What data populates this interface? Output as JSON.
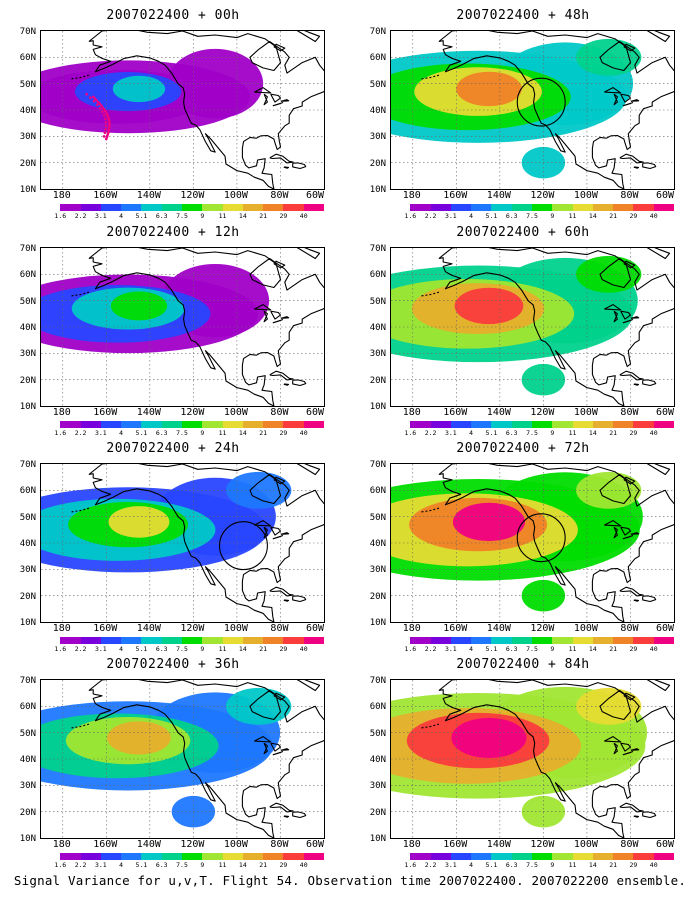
{
  "caption": "Signal Variance for u,v,T. Flight 54. Observation time 2007022400. 2007022200 ensemble.",
  "lat_labels": [
    "70N",
    "60N",
    "50N",
    "40N",
    "30N",
    "20N",
    "10N"
  ],
  "lon_labels": [
    "180",
    "160W",
    "140W",
    "120W",
    "100W",
    "80W",
    "60W"
  ],
  "colorbar": {
    "labels": [
      "1.6",
      "2.2",
      "3.1",
      "4",
      "5.1",
      "6.3",
      "7.5",
      "9",
      "11",
      "14",
      "21",
      "29",
      "40"
    ],
    "colors": [
      "#a000c8",
      "#7800dc",
      "#2846ff",
      "#1e78ff",
      "#00c8c8",
      "#00d28c",
      "#00dc00",
      "#a0e632",
      "#e6dc32",
      "#e6af2d",
      "#f08228",
      "#fa3c3c",
      "#f00082"
    ]
  },
  "panels": [
    {
      "title": "2007022400 + 00h",
      "level": 0.08,
      "circles": [],
      "track": true
    },
    {
      "title": "2007022400 + 12h",
      "level": 0.22,
      "circles": [],
      "track": false
    },
    {
      "title": "2007022400 + 24h",
      "level": 0.38,
      "circles": [
        {
          "lon": -97,
          "lat": 39,
          "r": 11
        }
      ],
      "track": false
    },
    {
      "title": "2007022400 + 36h",
      "level": 0.48,
      "circles": [],
      "track": false
    },
    {
      "title": "2007022400 + 48h",
      "level": 0.55,
      "circles": [
        {
          "lon": -121,
          "lat": 43,
          "r": 11
        }
      ],
      "track": false
    },
    {
      "title": "2007022400 + 60h",
      "level": 0.66,
      "circles": [],
      "track": false
    },
    {
      "title": "2007022400 + 72h",
      "level": 0.78,
      "circles": [
        {
          "lon": -121,
          "lat": 42,
          "r": 11
        }
      ],
      "track": false
    },
    {
      "title": "2007022400 + 84h",
      "level": 0.88,
      "circles": [],
      "track": false
    }
  ]
}
